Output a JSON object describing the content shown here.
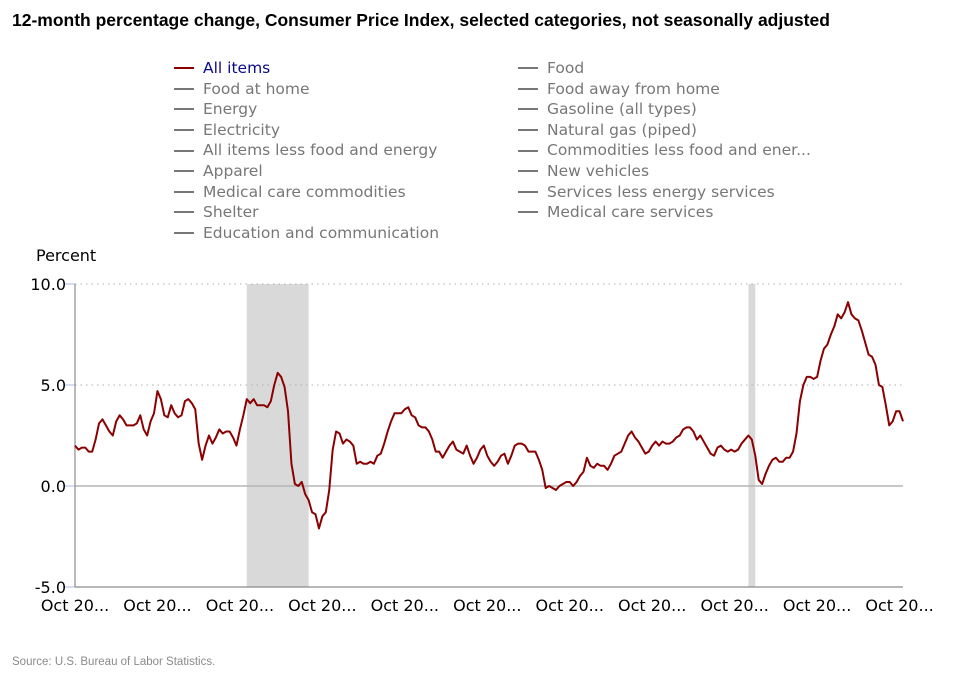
{
  "title": "12-month percentage change, Consumer Price Index, selected categories, not seasonally adjusted",
  "source": "Source: U.S. Bureau of Labor Statistics.",
  "colors": {
    "active_series": "#8b0000",
    "inactive_series": "#777777",
    "active_label": "#0b0b88",
    "recession_shade": "#d9d9d9"
  },
  "legend": {
    "column1": [
      {
        "label": "All items",
        "active": true
      },
      {
        "label": "Food at home",
        "active": false
      },
      {
        "label": "Energy",
        "active": false
      },
      {
        "label": "Electricity",
        "active": false
      },
      {
        "label": "All items less food and energy",
        "active": false
      },
      {
        "label": "Apparel",
        "active": false
      },
      {
        "label": "Medical care commodities",
        "active": false
      },
      {
        "label": "Shelter",
        "active": false
      },
      {
        "label": "Education and communication",
        "active": false
      }
    ],
    "column2": [
      {
        "label": "Food",
        "active": false
      },
      {
        "label": "Food away from home",
        "active": false
      },
      {
        "label": "Gasoline (all types)",
        "active": false
      },
      {
        "label": "Natural gas (piped)",
        "active": false
      },
      {
        "label": "Commodities less food and ener...",
        "active": false
      },
      {
        "label": "New vehicles",
        "active": false
      },
      {
        "label": "Services less energy services",
        "active": false
      },
      {
        "label": "Medical care services",
        "active": false
      }
    ]
  },
  "chart_data": {
    "type": "line",
    "title": "12-month percentage change, Consumer Price Index, selected categories, not seasonally adjusted",
    "ylabel": "Percent",
    "xlabel": "",
    "ylim": [
      -5.0,
      10.0
    ],
    "yticks": [
      "10.0",
      "5.0",
      "0.0",
      "-5.0"
    ],
    "ytick_values": [
      10,
      5,
      0,
      -5
    ],
    "xtick_labels": [
      "Oct 20...",
      "Oct 20...",
      "Oct 20...",
      "Oct 20...",
      "Oct 20...",
      "Oct 20...",
      "Oct 20...",
      "Oct 20...",
      "Oct 20...",
      "Oct 20...",
      "Oct 20..."
    ],
    "x_start": "Oct 2003",
    "x_end": "Oct 2023",
    "xtick_interval_months": 24,
    "grid": "horizontal dotted",
    "recession_shading": [
      {
        "start": "Dec 2007",
        "end": "Jun 2009"
      },
      {
        "start": "Feb 2020",
        "end": "Apr 2020"
      }
    ],
    "series": [
      {
        "name": "All items",
        "values": [
          2.0,
          1.8,
          1.9,
          1.9,
          1.7,
          1.7,
          2.3,
          3.1,
          3.3,
          3.0,
          2.7,
          2.5,
          3.2,
          3.5,
          3.3,
          3.0,
          3.0,
          3.0,
          3.1,
          3.5,
          2.8,
          2.5,
          3.2,
          3.6,
          4.7,
          4.3,
          3.5,
          3.4,
          4.0,
          3.6,
          3.4,
          3.5,
          4.2,
          4.3,
          4.1,
          3.8,
          2.1,
          1.3,
          2.0,
          2.5,
          2.1,
          2.4,
          2.8,
          2.6,
          2.7,
          2.7,
          2.4,
          2.0,
          2.8,
          3.5,
          4.3,
          4.1,
          4.3,
          4.0,
          4.0,
          4.0,
          3.9,
          4.2,
          5.0,
          5.6,
          5.4,
          4.9,
          3.7,
          1.1,
          0.1,
          0.0,
          0.2,
          -0.4,
          -0.7,
          -1.3,
          -1.4,
          -2.1,
          -1.5,
          -1.3,
          -0.2,
          1.8,
          2.7,
          2.6,
          2.1,
          2.3,
          2.2,
          2.0,
          1.1,
          1.2,
          1.1,
          1.1,
          1.2,
          1.1,
          1.5,
          1.6,
          2.1,
          2.7,
          3.2,
          3.6,
          3.6,
          3.6,
          3.8,
          3.9,
          3.5,
          3.4,
          3.0,
          2.9,
          2.9,
          2.7,
          2.3,
          1.7,
          1.7,
          1.4,
          1.7,
          2.0,
          2.2,
          1.8,
          1.7,
          1.6,
          2.0,
          1.5,
          1.1,
          1.4,
          1.8,
          2.0,
          1.5,
          1.2,
          1.0,
          1.2,
          1.5,
          1.6,
          1.1,
          1.5,
          2.0,
          2.1,
          2.1,
          2.0,
          1.7,
          1.7,
          1.7,
          1.3,
          0.8,
          -0.1,
          0.0,
          -0.1,
          -0.2,
          0.0,
          0.1,
          0.2,
          0.2,
          0.0,
          0.2,
          0.5,
          0.7,
          1.4,
          1.0,
          0.9,
          1.1,
          1.0,
          1.0,
          0.8,
          1.1,
          1.5,
          1.6,
          1.7,
          2.1,
          2.5,
          2.7,
          2.4,
          2.2,
          1.9,
          1.6,
          1.7,
          2.0,
          2.2,
          2.0,
          2.2,
          2.1,
          2.1,
          2.2,
          2.4,
          2.5,
          2.8,
          2.9,
          2.9,
          2.7,
          2.3,
          2.5,
          2.2,
          1.9,
          1.6,
          1.5,
          1.9,
          2.0,
          1.8,
          1.7,
          1.8,
          1.7,
          1.8,
          2.1,
          2.3,
          2.5,
          2.3,
          1.5,
          0.3,
          0.1,
          0.6,
          1.0,
          1.3,
          1.4,
          1.2,
          1.2,
          1.4,
          1.4,
          1.7,
          2.6,
          4.2,
          5.0,
          5.4,
          5.4,
          5.3,
          5.4,
          6.2,
          6.8,
          7.0,
          7.5,
          7.9,
          8.5,
          8.3,
          8.6,
          9.1,
          8.5,
          8.3,
          8.2,
          7.7,
          7.1,
          6.5,
          6.4,
          6.0,
          5.0,
          4.9,
          4.0,
          3.0,
          3.2,
          3.7,
          3.7,
          3.2
        ]
      }
    ]
  }
}
